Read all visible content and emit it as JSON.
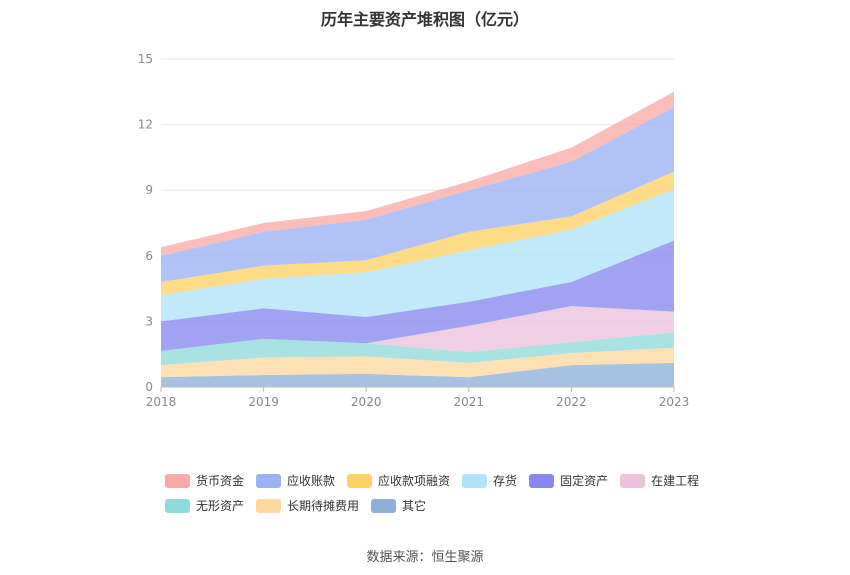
{
  "chart_data": {
    "type": "area",
    "stacked": true,
    "title": "历年主要资产堆积图（亿元）",
    "x": [
      "2018",
      "2019",
      "2020",
      "2021",
      "2022",
      "2023"
    ],
    "yticks": [
      0,
      3,
      6,
      9,
      12,
      15
    ],
    "ylim": [
      0,
      15
    ],
    "grid": true,
    "legend_position": "bottom",
    "series": [
      {
        "name": "其它",
        "color": "#8eb0d8",
        "values": [
          0.45,
          0.55,
          0.6,
          0.45,
          1.0,
          1.1
        ]
      },
      {
        "name": "长期待摊费用",
        "color": "#fdd9a0",
        "values": [
          0.55,
          0.8,
          0.8,
          0.65,
          0.55,
          0.7
        ]
      },
      {
        "name": "无形资产",
        "color": "#8fdada",
        "values": [
          0.65,
          0.85,
          0.6,
          0.5,
          0.5,
          0.7
        ]
      },
      {
        "name": "在建工程",
        "color": "#ecc1dc",
        "values": [
          0.0,
          0.0,
          0.0,
          1.2,
          1.65,
          0.95
        ]
      },
      {
        "name": "固定资产",
        "color": "#8888f0",
        "values": [
          1.35,
          1.4,
          1.2,
          1.1,
          1.1,
          3.25
        ]
      },
      {
        "name": "存货",
        "color": "#b0e3f8",
        "values": [
          1.2,
          1.35,
          2.05,
          2.35,
          2.4,
          2.35
        ]
      },
      {
        "name": "应收款项融资",
        "color": "#ffd166",
        "values": [
          0.6,
          0.6,
          0.55,
          0.85,
          0.6,
          0.8
        ]
      },
      {
        "name": "应收账款",
        "color": "#9bb1f5",
        "values": [
          1.2,
          1.55,
          1.85,
          1.9,
          2.5,
          2.95
        ]
      },
      {
        "name": "货币资金",
        "color": "#f9aaa6",
        "values": [
          0.4,
          0.4,
          0.4,
          0.4,
          0.65,
          0.7
        ]
      }
    ]
  },
  "legend_order": [
    "货币资金",
    "应收账款",
    "应收款项融资",
    "存货",
    "固定资产",
    "在建工程",
    "无形资产",
    "长期待摊费用",
    "其它"
  ],
  "source": "数据来源：恒生聚源"
}
